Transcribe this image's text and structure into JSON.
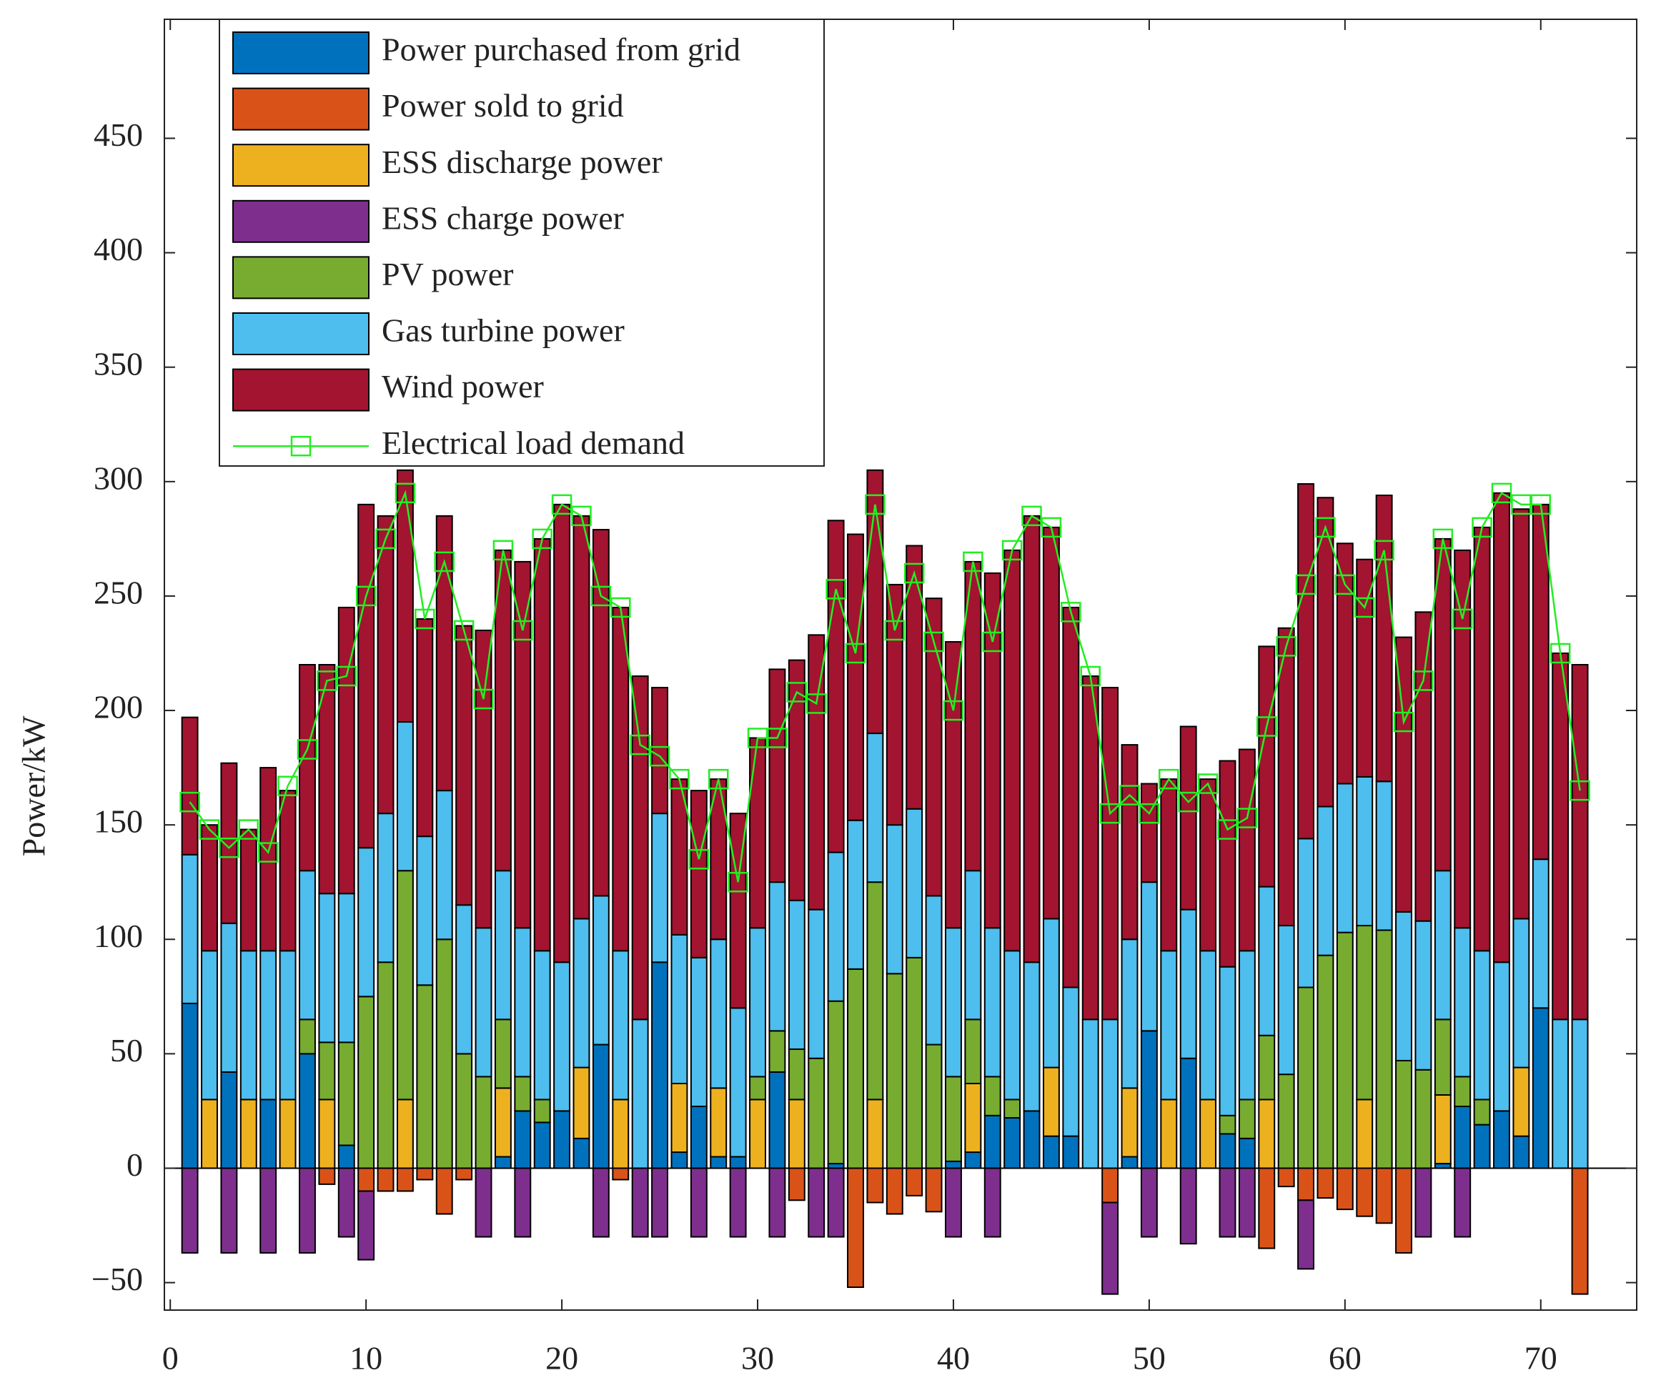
{
  "chart_data": {
    "type": "bar",
    "stacked": true,
    "ylabel": "Power/kW",
    "x": [
      1,
      2,
      3,
      4,
      5,
      6,
      7,
      8,
      9,
      10,
      11,
      12,
      13,
      14,
      15,
      16,
      17,
      18,
      19,
      20,
      21,
      22,
      23,
      24,
      25,
      26,
      27,
      28,
      29,
      30,
      31,
      32,
      33,
      34,
      35,
      36,
      37,
      38,
      39,
      40,
      41,
      42,
      43,
      44,
      45,
      46,
      47,
      48,
      49,
      50,
      51,
      52,
      53,
      54,
      55,
      56,
      57,
      58,
      59,
      60,
      61,
      62,
      63,
      64,
      65,
      66,
      67,
      68,
      69,
      70,
      71,
      72
    ],
    "xlim": [
      -0.3,
      74.9
    ],
    "xticks": [
      0,
      10,
      20,
      30,
      40,
      50,
      60,
      70
    ],
    "ylim": [
      -62,
      502
    ],
    "yticks": [
      {
        "value": -50,
        "label": "−50"
      },
      0,
      50,
      100,
      150,
      200,
      250,
      300,
      350,
      400,
      450
    ],
    "grid": false,
    "legend": "upper-left",
    "series": [
      {
        "name": "Power purchased from grid",
        "color": "#0072bd",
        "type": "bar",
        "values": [
          72,
          0,
          42,
          0,
          30,
          0,
          50,
          0,
          10,
          0,
          0,
          0,
          0,
          0,
          0,
          0,
          5,
          25,
          20,
          25,
          13,
          54,
          0,
          0,
          90,
          7,
          27,
          5,
          5,
          0,
          42,
          0,
          0,
          2,
          0,
          0,
          0,
          0,
          0,
          3,
          7,
          23,
          22,
          25,
          14,
          14,
          0,
          0,
          5,
          60,
          0,
          48,
          0,
          15,
          13,
          0,
          0,
          0,
          0,
          0,
          0,
          0,
          0,
          0,
          2,
          27,
          19,
          25,
          14,
          70,
          0,
          0
        ]
      },
      {
        "name": "Power sold to grid",
        "color": "#d95319",
        "type": "bar",
        "values": [
          0,
          0,
          0,
          0,
          0,
          0,
          0,
          -7,
          0,
          -10,
          -10,
          -10,
          -5,
          -20,
          -5,
          0,
          0,
          0,
          0,
          0,
          0,
          0,
          -5,
          0,
          0,
          0,
          0,
          0,
          0,
          0,
          0,
          -14,
          0,
          0,
          -52,
          -15,
          -20,
          -12,
          -19,
          0,
          0,
          0,
          0,
          0,
          0,
          0,
          0,
          -15,
          0,
          0,
          0,
          0,
          0,
          0,
          0,
          -35,
          -8,
          -14,
          -13,
          -18,
          -21,
          -24,
          -37,
          0,
          0,
          0,
          0,
          0,
          0,
          0,
          0,
          -55
        ]
      },
      {
        "name": "ESS discharge power",
        "color": "#edb120",
        "type": "bar",
        "values": [
          0,
          30,
          0,
          30,
          0,
          30,
          0,
          30,
          0,
          0,
          0,
          30,
          0,
          0,
          0,
          0,
          30,
          0,
          0,
          0,
          31,
          0,
          30,
          0,
          0,
          30,
          0,
          30,
          0,
          30,
          0,
          30,
          0,
          0,
          0,
          30,
          0,
          0,
          0,
          0,
          30,
          0,
          0,
          0,
          30,
          0,
          0,
          0,
          30,
          0,
          30,
          0,
          30,
          0,
          0,
          30,
          0,
          0,
          0,
          0,
          30,
          0,
          0,
          0,
          30,
          0,
          0,
          0,
          30,
          0,
          0,
          0
        ]
      },
      {
        "name": "ESS charge power",
        "color": "#7e2f8e",
        "type": "bar",
        "values": [
          -37,
          0,
          -37,
          0,
          -37,
          0,
          -37,
          0,
          -30,
          -30,
          0,
          0,
          0,
          0,
          0,
          -30,
          0,
          -30,
          0,
          0,
          0,
          -30,
          0,
          -30,
          -30,
          0,
          -30,
          0,
          -30,
          0,
          -30,
          0,
          -30,
          -30,
          0,
          0,
          0,
          0,
          0,
          -30,
          0,
          -30,
          0,
          0,
          0,
          0,
          0,
          -40,
          0,
          -30,
          0,
          -33,
          0,
          -30,
          -30,
          0,
          0,
          -30,
          0,
          0,
          0,
          0,
          0,
          -30,
          0,
          -30,
          0,
          0,
          0,
          0,
          0,
          0
        ]
      },
      {
        "name": "PV power",
        "color": "#77ac30",
        "type": "bar",
        "values": [
          0,
          0,
          0,
          0,
          0,
          0,
          15,
          25,
          45,
          75,
          90,
          100,
          80,
          100,
          50,
          40,
          30,
          15,
          10,
          0,
          0,
          0,
          0,
          0,
          0,
          0,
          0,
          0,
          0,
          10,
          18,
          22,
          48,
          71,
          87,
          95,
          85,
          92,
          54,
          37,
          28,
          17,
          8,
          0,
          0,
          0,
          0,
          0,
          0,
          0,
          0,
          0,
          0,
          8,
          17,
          28,
          41,
          79,
          93,
          103,
          76,
          104,
          47,
          43,
          33,
          13,
          11,
          0,
          0,
          0,
          0,
          0
        ]
      },
      {
        "name": "Gas turbine power",
        "color": "#4dbeee",
        "type": "bar",
        "values": [
          65,
          65,
          65,
          65,
          65,
          65,
          65,
          65,
          65,
          65,
          65,
          65,
          65,
          65,
          65,
          65,
          65,
          65,
          65,
          65,
          65,
          65,
          65,
          65,
          65,
          65,
          65,
          65,
          65,
          65,
          65,
          65,
          65,
          65,
          65,
          65,
          65,
          65,
          65,
          65,
          65,
          65,
          65,
          65,
          65,
          65,
          65,
          65,
          65,
          65,
          65,
          65,
          65,
          65,
          65,
          65,
          65,
          65,
          65,
          65,
          65,
          65,
          65,
          65,
          65,
          65,
          65,
          65,
          65,
          65,
          65,
          65
        ]
      },
      {
        "name": "Wind power",
        "color": "#a2142f",
        "type": "bar",
        "values": [
          60,
          55,
          70,
          53,
          80,
          70,
          90,
          100,
          125,
          150,
          130,
          110,
          95,
          120,
          122,
          130,
          140,
          160,
          180,
          200,
          176,
          160,
          150,
          150,
          55,
          68,
          73,
          70,
          85,
          83,
          93,
          105,
          120,
          145,
          125,
          115,
          105,
          115,
          130,
          125,
          135,
          155,
          175,
          195,
          171,
          166,
          150,
          145,
          85,
          43,
          75,
          80,
          75,
          90,
          88,
          105,
          130,
          155,
          135,
          105,
          95,
          125,
          120,
          135,
          145,
          165,
          185,
          205,
          179,
          155,
          160,
          155
        ]
      },
      {
        "name": "Electrical load demand",
        "color": "#22ee22",
        "type": "line",
        "values": [
          160,
          148,
          140,
          148,
          138,
          167,
          183,
          213,
          215,
          250,
          275,
          295,
          240,
          265,
          235,
          205,
          270,
          235,
          275,
          290,
          285,
          250,
          245,
          185,
          180,
          170,
          135,
          170,
          125,
          188,
          188,
          208,
          203,
          253,
          225,
          290,
          235,
          260,
          230,
          200,
          265,
          230,
          270,
          285,
          280,
          243,
          215,
          155,
          163,
          155,
          170,
          160,
          168,
          148,
          153,
          193,
          228,
          255,
          280,
          255,
          245,
          270,
          195,
          213,
          275,
          240,
          280,
          295,
          290,
          290,
          225,
          165
        ]
      }
    ]
  }
}
